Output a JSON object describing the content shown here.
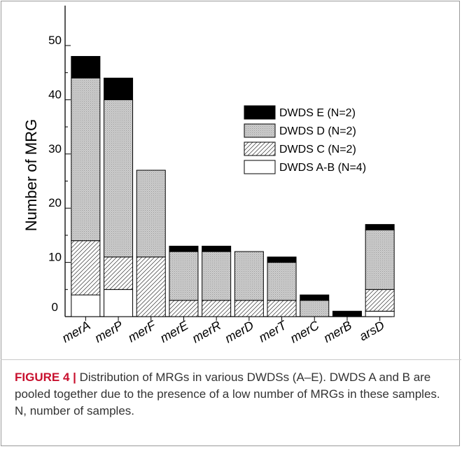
{
  "chart_data": {
    "type": "bar",
    "stacked": true,
    "xlabel": "",
    "ylabel": "Number of MRG",
    "ylim": [
      0,
      53
    ],
    "yticks": [
      10,
      20,
      30,
      40,
      50
    ],
    "grid": false,
    "legend_position": "top-right",
    "categories": [
      "merA",
      "merP",
      "merF",
      "merE",
      "merR",
      "merD",
      "merT",
      "merC",
      "merB",
      "arsD"
    ],
    "series": [
      {
        "name": "DWDS A-B (N=4)",
        "fill": "white",
        "values": [
          4,
          5,
          0,
          0,
          0,
          0,
          0,
          0,
          0,
          1
        ]
      },
      {
        "name": "DWDS C (N=2)",
        "fill": "hatched",
        "values": [
          10,
          6,
          11,
          3,
          3,
          3,
          3,
          0,
          0,
          4
        ]
      },
      {
        "name": "DWDS D (N=2)",
        "fill": "stipple",
        "values": [
          30,
          29,
          16,
          9,
          9,
          9,
          7,
          3,
          0,
          11
        ]
      },
      {
        "name": "DWDS E (N=2)",
        "fill": "black",
        "values": [
          4,
          4,
          0,
          1,
          1,
          0,
          1,
          1,
          1,
          1
        ]
      }
    ]
  },
  "caption": {
    "label": "FIGURE 4 |",
    "text": " Distribution of MRGs in various DWDSs (A–E). DWDS A and B are pooled together due to the presence of a low number of MRGs in these samples. N, number of samples."
  },
  "colors": {
    "stipple": "#c6c6c6",
    "black": "#000000",
    "axis": "#000000"
  }
}
